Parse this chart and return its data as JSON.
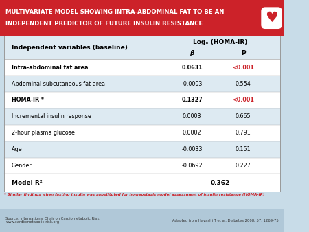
{
  "title_line1": "MULTIVARIATE MODEL SHOWING INTRA-ABDOMINAL FAT TO BE AN",
  "title_line2": "INDEPENDENT PREDICTOR OF FUTURE INSULIN RESISTANCE",
  "title_bg": "#cc2229",
  "title_color": "#ffffff",
  "bg_color": "#c8dce8",
  "table_bg": "#ddeaf2",
  "header_col1": "Independent variables (baseline)",
  "header_col2": "Logₑ (HOMA-IR)",
  "header_beta": "β",
  "header_p": "P",
  "rows": [
    {
      "label": "Intra-abdominal fat area",
      "beta": "0.0631",
      "p": "<0.001",
      "bold": true,
      "row_bg": "#ffffff"
    },
    {
      "label": "Abdominal subcutaneous fat area",
      "beta": "-0.0003",
      "p": "0.554",
      "bold": false,
      "row_bg": "#ddeaf2"
    },
    {
      "label": "HOMA-IR *",
      "beta": "0.1327",
      "p": "<0.001",
      "bold": true,
      "row_bg": "#ffffff"
    },
    {
      "label": "Incremental insulin response",
      "beta": "0.0003",
      "p": "0.665",
      "bold": false,
      "row_bg": "#ddeaf2"
    },
    {
      "label": "2-hour plasma glucose",
      "beta": "0.0002",
      "p": "0.791",
      "bold": false,
      "row_bg": "#ffffff"
    },
    {
      "label": "Age",
      "beta": "-0.0033",
      "p": "0.151",
      "bold": false,
      "row_bg": "#ddeaf2"
    },
    {
      "label": "Gender",
      "beta": "-0.0692",
      "p": "0.227",
      "bold": false,
      "row_bg": "#ffffff"
    }
  ],
  "footer_row": {
    "label": "Model R²",
    "value": "0.362",
    "bold": true,
    "row_bg": "#ffffff"
  },
  "footnote": "* Similar findings when fasting insulin was substituted for homeostasis model assessment of insulin resistance (HOMA-IR)",
  "source_left": "Source: International Chair on Cardiometabolic Risk\nwww.cardiometabolic-risk.org",
  "source_right": "Adapted from Hayashi T et al. Diabetes 2008; 57: 1269-75",
  "source_bg": "#b0c8d8",
  "heart_color": "#cc2229"
}
